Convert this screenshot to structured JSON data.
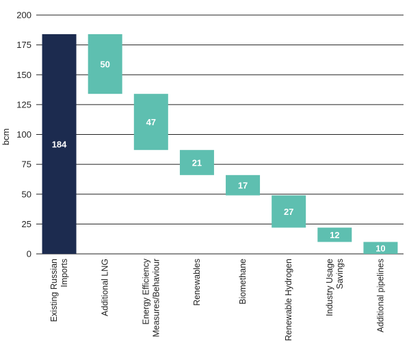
{
  "chart_data": {
    "type": "bar",
    "subtype": "waterfall",
    "ylabel": "bcm",
    "ylim": [
      0,
      200
    ],
    "yticks": [
      0,
      25,
      50,
      75,
      100,
      125,
      150,
      175,
      200
    ],
    "grid": true,
    "categories": [
      [
        "Existing Russian",
        "Imports"
      ],
      [
        "Additional LNG"
      ],
      [
        "Energy Efficiency",
        "Measures/Behaviour"
      ],
      [
        "Renewables"
      ],
      [
        "Biomethane"
      ],
      [
        "Renewable Hydrogen"
      ],
      [
        "Industry Usage",
        "Savings"
      ],
      [
        "Additional pipelines"
      ]
    ],
    "values": [
      184,
      50,
      47,
      21,
      17,
      27,
      12,
      10
    ],
    "colors": {
      "total": "#1c2b4f",
      "step": "#5ebfb0"
    }
  }
}
